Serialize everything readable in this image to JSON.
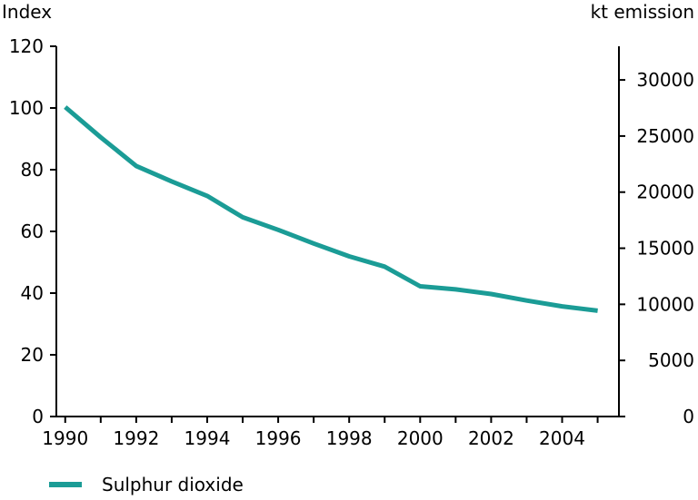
{
  "chart_data": {
    "type": "line",
    "left_axis_title": "Index",
    "right_axis_title": "kt emission",
    "x": [
      1990,
      1991,
      1992,
      1993,
      1994,
      1995,
      1996,
      1997,
      1998,
      1999,
      2000,
      2001,
      2002,
      2003,
      2004,
      2005
    ],
    "x_tick_labels": [
      "1990",
      "1992",
      "1994",
      "1996",
      "1998",
      "2000",
      "2002",
      "2004"
    ],
    "xlim": [
      1989.75,
      2005.6
    ],
    "left_ylim": [
      0,
      120
    ],
    "left_ticks": [
      0,
      20,
      40,
      60,
      80,
      100,
      120
    ],
    "right_ylim": [
      0,
      33000
    ],
    "right_ticks": [
      0,
      5000,
      10000,
      15000,
      20000,
      25000,
      30000
    ],
    "series": [
      {
        "name": "Sulphur dioxide",
        "color": "#1b9c96",
        "axis": "left",
        "values": [
          100.3,
          90.5,
          81.2,
          76.2,
          71.5,
          64.6,
          60.5,
          56.1,
          51.9,
          48.6,
          42.2,
          41.2,
          39.7,
          37.6,
          35.7,
          34.3
        ]
      }
    ],
    "grid": false,
    "legend_position": "bottom-left"
  },
  "legend": {
    "label": "Sulphur dioxide",
    "color": "#1b9c96"
  }
}
